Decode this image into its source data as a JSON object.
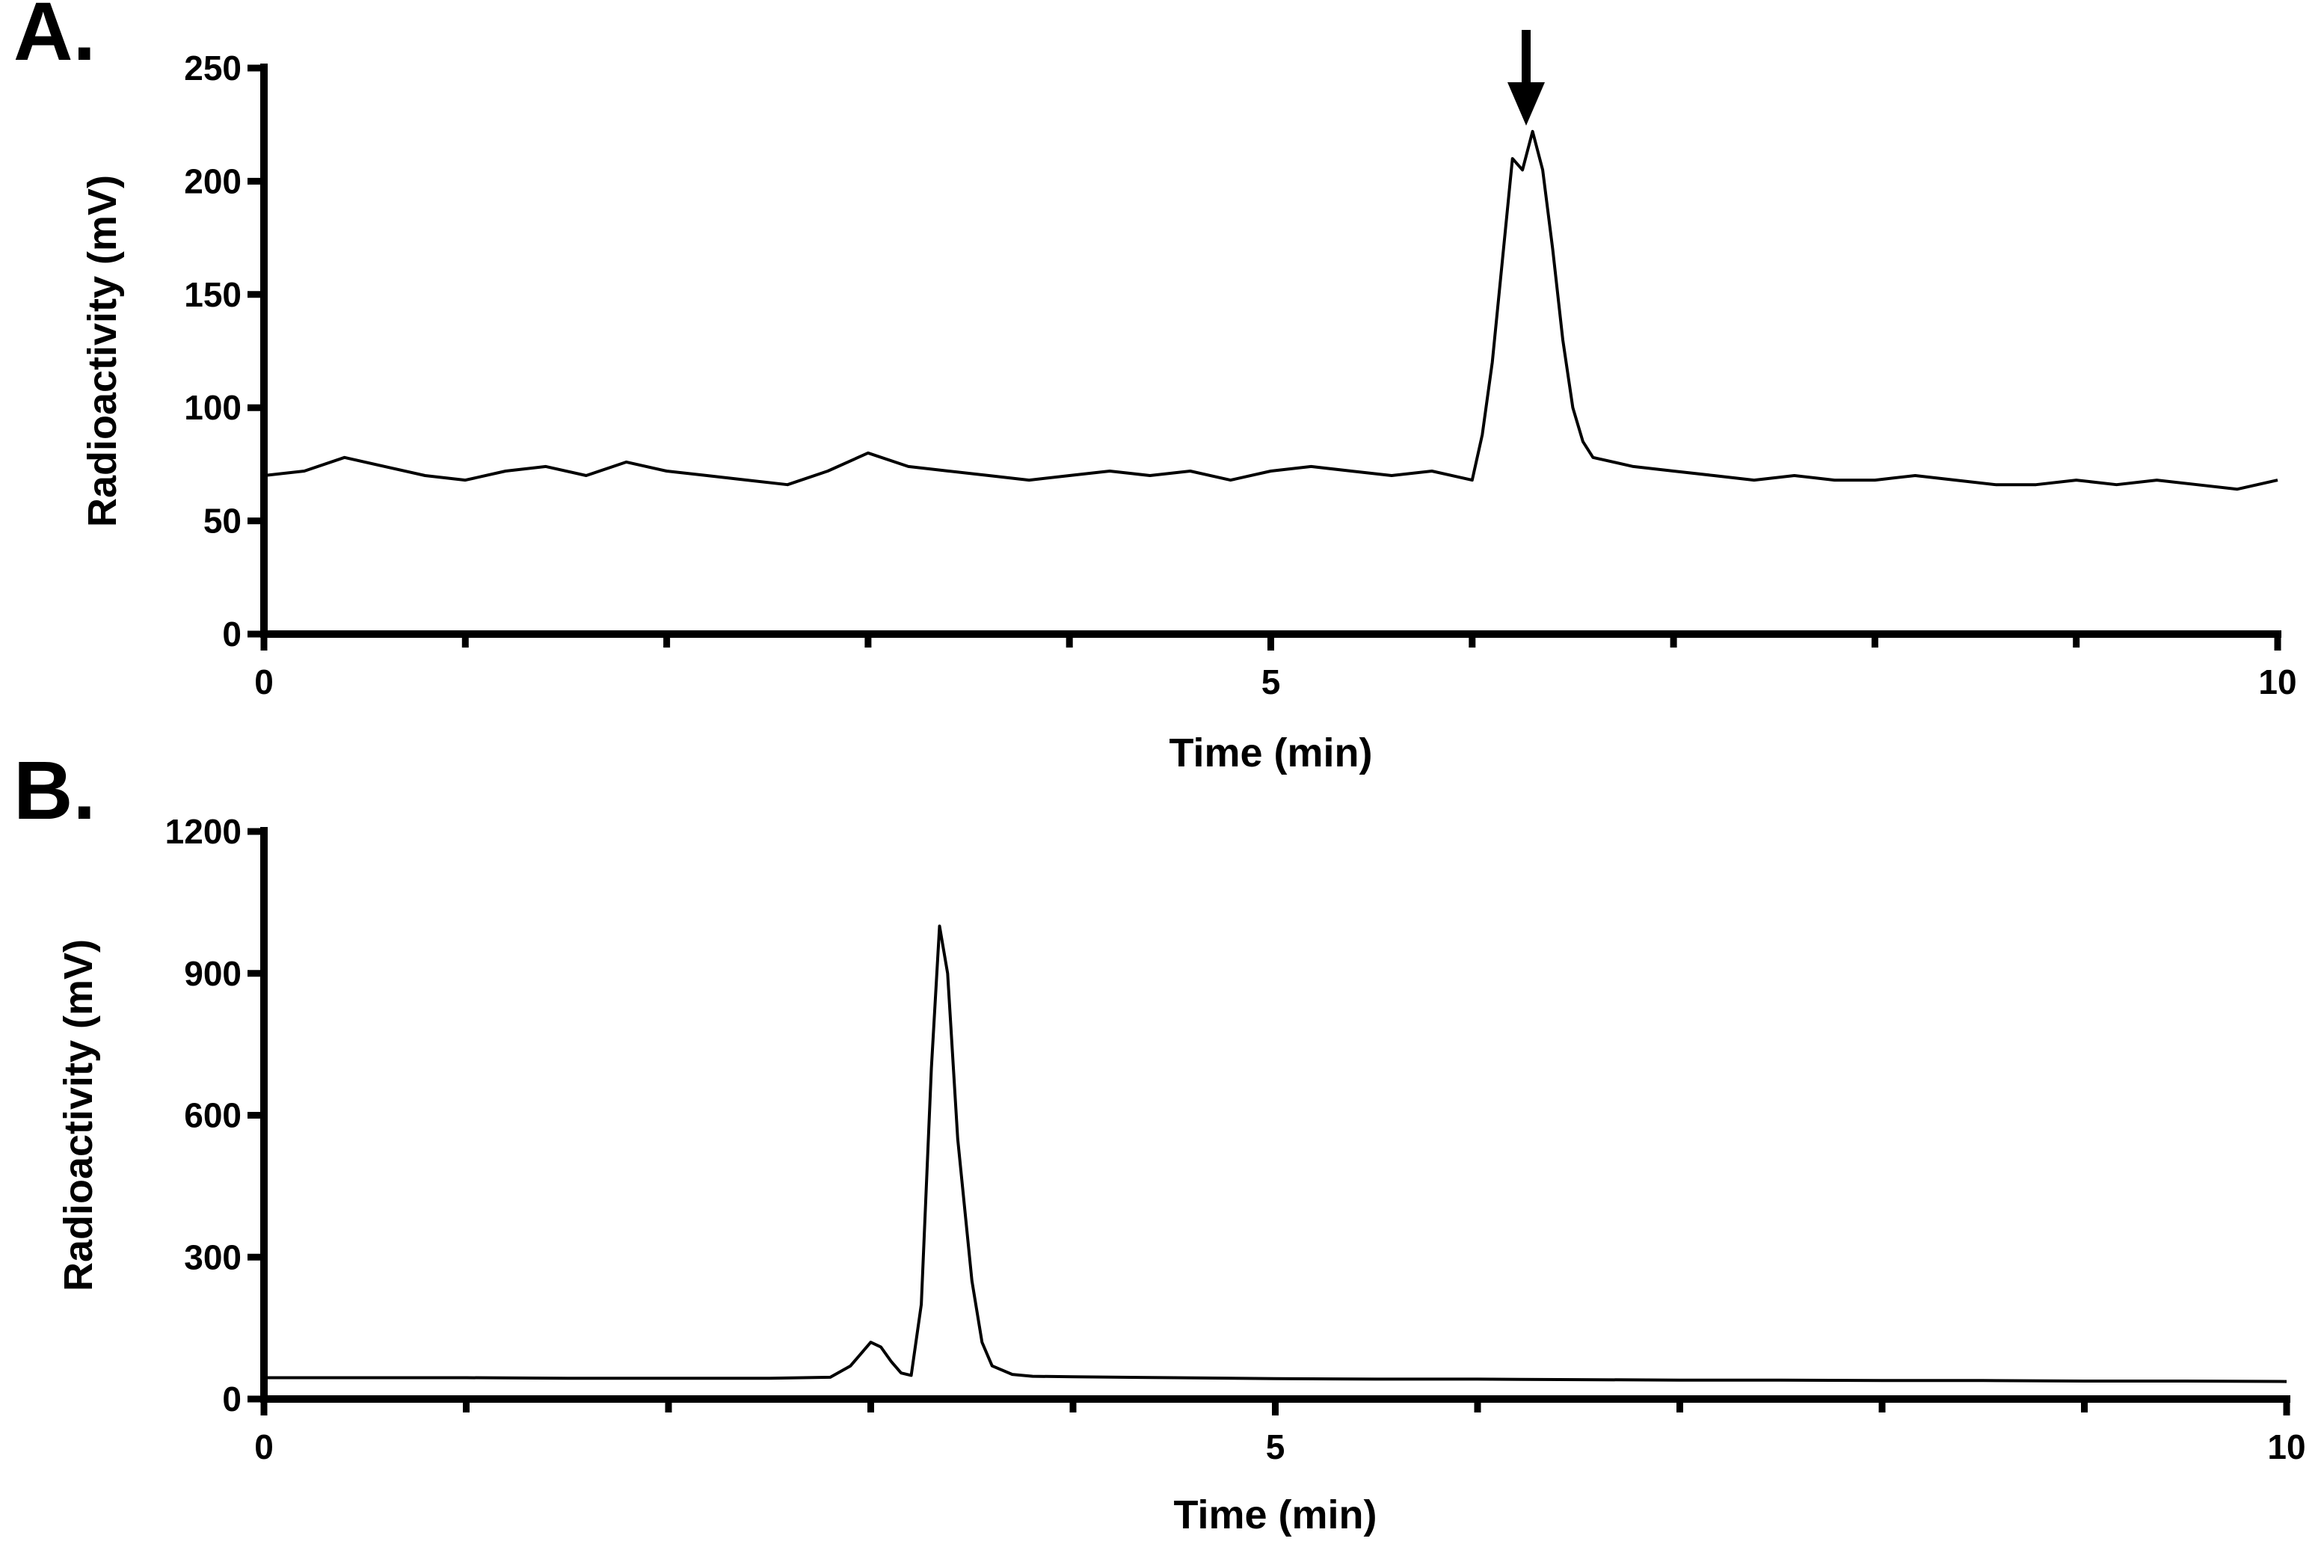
{
  "chart_data": [
    {
      "type": "line",
      "panel_label": "A.",
      "x_label": "Time (min)",
      "y_label": "Radioactivity (mV)",
      "xlim": [
        0,
        10
      ],
      "xticks": [
        0,
        5,
        10
      ],
      "minor_xticks": [
        1,
        2,
        3,
        4,
        6,
        7,
        8,
        9
      ],
      "ylim": [
        0,
        250
      ],
      "yticks": [
        0,
        50,
        100,
        150,
        200,
        250
      ],
      "series": [
        {
          "color": "#000000",
          "x": [
            0,
            0.2,
            0.4,
            0.6,
            0.8,
            1.0,
            1.2,
            1.4,
            1.6,
            1.8,
            2.0,
            2.2,
            2.4,
            2.6,
            2.8,
            3.0,
            3.2,
            3.4,
            3.6,
            3.8,
            4.0,
            4.2,
            4.4,
            4.6,
            4.8,
            5.0,
            5.2,
            5.4,
            5.6,
            5.8,
            6.0,
            6.05,
            6.1,
            6.15,
            6.2,
            6.25,
            6.3,
            6.35,
            6.4,
            6.45,
            6.5,
            6.55,
            6.6,
            6.8,
            7.0,
            7.2,
            7.4,
            7.6,
            7.8,
            8.0,
            8.2,
            8.4,
            8.6,
            8.8,
            9.0,
            9.2,
            9.4,
            9.6,
            9.8,
            10.0
          ],
          "values": [
            70,
            72,
            78,
            74,
            70,
            68,
            72,
            74,
            70,
            76,
            72,
            70,
            68,
            66,
            72,
            80,
            74,
            72,
            70,
            68,
            70,
            72,
            70,
            72,
            68,
            72,
            74,
            72,
            70,
            72,
            68,
            88,
            120,
            165,
            210,
            205,
            222,
            205,
            170,
            130,
            100,
            85,
            78,
            74,
            72,
            70,
            68,
            70,
            68,
            68,
            70,
            68,
            66,
            66,
            68,
            66,
            68,
            66,
            64,
            68
          ]
        }
      ]
    },
    {
      "type": "line",
      "panel_label": "B.",
      "x_label": "Time (min)",
      "y_label": "Radioactivity (mV)",
      "xlim": [
        0,
        10
      ],
      "xticks": [
        0,
        5,
        10
      ],
      "minor_xticks": [
        1,
        2,
        3,
        4,
        6,
        7,
        8,
        9
      ],
      "ylim": [
        0,
        1200
      ],
      "yticks": [
        0,
        300,
        600,
        900,
        1200
      ],
      "series": [
        {
          "color": "#000000",
          "x": [
            0,
            0.5,
            1,
            1.5,
            2,
            2.5,
            2.8,
            2.9,
            3.0,
            3.05,
            3.1,
            3.15,
            3.2,
            3.25,
            3.3,
            3.34,
            3.38,
            3.43,
            3.5,
            3.55,
            3.6,
            3.7,
            3.8,
            4,
            4.5,
            5,
            5.5,
            6,
            6.5,
            7,
            7.5,
            8,
            8.5,
            9,
            9.5,
            10
          ],
          "values": [
            45,
            45,
            45,
            44,
            44,
            44,
            46,
            70,
            120,
            110,
            80,
            55,
            50,
            200,
            700,
            1000,
            900,
            550,
            250,
            120,
            70,
            52,
            48,
            47,
            45,
            43,
            42,
            42,
            41,
            40,
            40,
            39,
            39,
            38,
            38,
            37
          ]
        }
      ]
    }
  ]
}
